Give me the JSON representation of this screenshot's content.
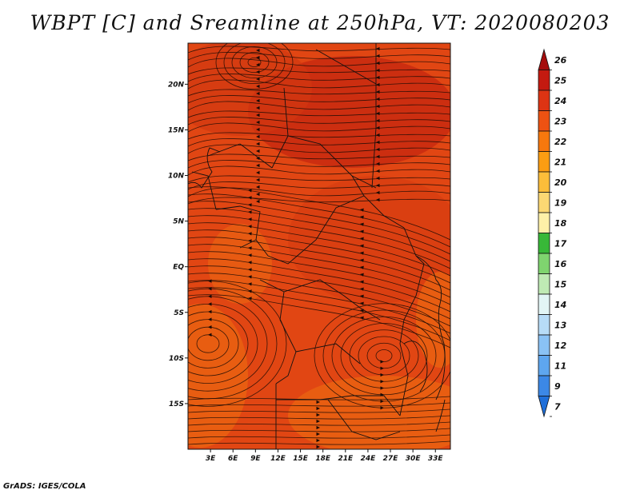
{
  "title": "WBPT [C] and Sreamline at 250hPa, VT: 2020080203",
  "credit": "GrADS: IGES/COLA",
  "map": {
    "lon_ticks": [
      "3E",
      "6E",
      "9E",
      "12E",
      "15E",
      "18E",
      "21E",
      "24E",
      "27E",
      "30E",
      "33E"
    ],
    "lon_values": [
      3,
      6,
      9,
      12,
      15,
      18,
      21,
      24,
      27,
      30,
      33
    ],
    "lat_ticks": [
      "20N",
      "15N",
      "10N",
      "5N",
      "EQ",
      "5S",
      "10S",
      "15S"
    ],
    "lat_values": [
      20,
      15,
      10,
      5,
      0,
      -5,
      -10,
      -15
    ],
    "lon_range": [
      0,
      35
    ],
    "lat_range": [
      -20,
      24.5
    ]
  },
  "colorbar": {
    "labels": [
      "26",
      "25",
      "24",
      "23",
      "22",
      "21",
      "20",
      "19",
      "18",
      "17",
      "16",
      "15",
      "14",
      "13",
      "12",
      "11",
      "9",
      "7"
    ],
    "colors": [
      "#a50d0d",
      "#c41a10",
      "#dd3413",
      "#ed5212",
      "#f7780d",
      "#fb9d12",
      "#fbbd3a",
      "#fcd873",
      "#fdf0a8",
      "#38b838",
      "#7fd46f",
      "#bfeab4",
      "#e2f5f5",
      "#b7dcf7",
      "#8ac2f5",
      "#5ea6ef",
      "#3c88e6",
      "#1f6fd9"
    ]
  },
  "legend_field_colors": {
    "dominant": "#e14613",
    "dark": "#c82a10",
    "light": "#ea6312"
  }
}
